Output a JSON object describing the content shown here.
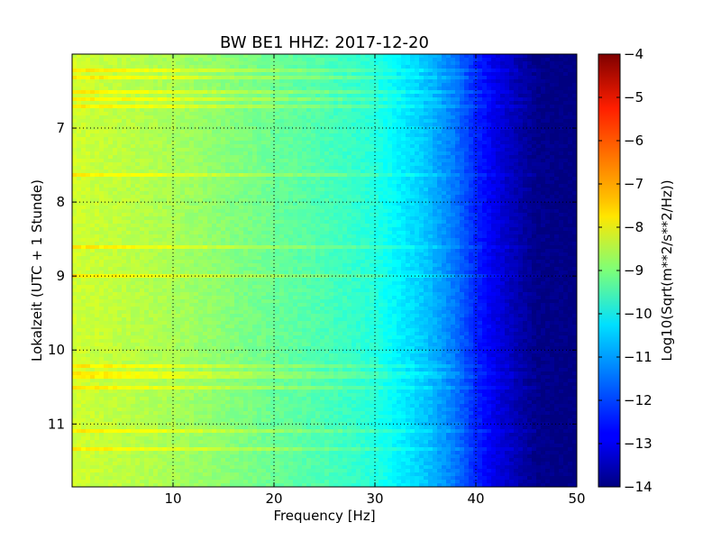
{
  "chart_data": {
    "type": "heatmap",
    "title": "BW BE1 HHZ: 2017-12-20",
    "xlabel": "Frequency [Hz]",
    "ylabel": "Lokalzeit (UTC + 1 Stunde)",
    "xlim": [
      0,
      50
    ],
    "ylim": [
      11.85,
      6.0
    ],
    "y_inverted": true,
    "x_ticks": [
      10,
      20,
      30,
      40,
      50
    ],
    "x_tick_labels": [
      "10",
      "20",
      "30",
      "40",
      "50"
    ],
    "y_ticks": [
      7,
      8,
      9,
      10,
      11
    ],
    "y_tick_labels": [
      "7",
      "8",
      "9",
      "10",
      "11"
    ],
    "grid": true,
    "colormap": "jet",
    "colorbar": {
      "label": "Log10(Sqrt(m**2/s**2/Hz))",
      "range": [
        -14,
        -4
      ],
      "ticks": [
        -4,
        -5,
        -6,
        -7,
        -8,
        -9,
        -10,
        -11,
        -12,
        -13,
        -14
      ],
      "tick_labels": [
        "−4",
        "−5",
        "−6",
        "−7",
        "−8",
        "−9",
        "−10",
        "−11",
        "−12",
        "−13",
        "−14"
      ]
    },
    "spectral_profile": {
      "frequency_hz": [
        0,
        5,
        10,
        15,
        20,
        25,
        30,
        32,
        35,
        38,
        40,
        42,
        44,
        46,
        50
      ],
      "log10_value": [
        -8.2,
        -8.4,
        -8.6,
        -8.9,
        -9.2,
        -9.5,
        -9.9,
        -10.3,
        -10.8,
        -11.6,
        -12.4,
        -13.0,
        -13.5,
        -13.9,
        -14.0
      ]
    },
    "bright_bands_time": [
      6.2,
      6.3,
      6.5,
      6.6,
      6.72,
      7.65,
      8.6,
      8.98,
      10.22,
      10.34,
      10.5,
      11.1,
      11.32
    ]
  }
}
